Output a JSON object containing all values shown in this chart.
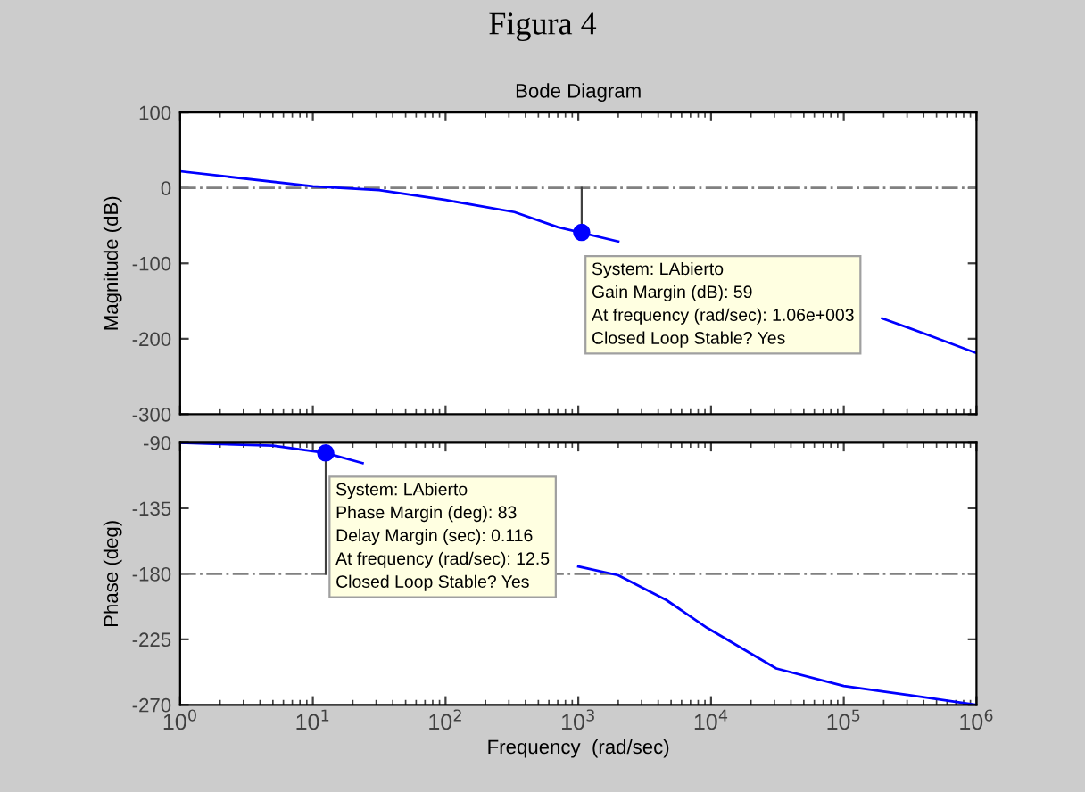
{
  "chart_data": [
    {
      "type": "line",
      "title": "Bode Diagram",
      "ylabel": "Magnitude (dB)",
      "log": "x",
      "xlim": [
        1,
        1000000
      ],
      "xticks": [
        {
          "value": 1,
          "label": null
        },
        {
          "value": 10,
          "label": null
        },
        {
          "value": 100,
          "label": null
        },
        {
          "value": 1000,
          "label": null
        },
        {
          "value": 10000,
          "label": null
        },
        {
          "value": 100000,
          "label": null
        },
        {
          "value": 1000000,
          "label": null
        }
      ],
      "ylim": [
        -300,
        100
      ],
      "yticks": [
        100,
        0,
        -100,
        -200,
        -300
      ],
      "tick_labels": "y",
      "grid": false,
      "legend": false,
      "series": [
        {
          "color": "#0000ff",
          "x": [
            1,
            10,
            31.6,
            100,
            330,
            700,
            2000,
            3000,
            195000,
            417000,
            1000000
          ],
          "values": [
            22,
            2,
            -3,
            -16,
            -32,
            -52,
            -71,
            null,
            -173,
            -194,
            -219
          ]
        }
      ],
      "ref_lines": [
        {
          "axis": "y",
          "value": 0,
          "color": "#808080",
          "line_style": "dashdot"
        }
      ],
      "annotations": [
        "Figura 4",
        {
          "text": "System: LAbierto\nGain Margin (dB): 59\nAt frequency (rad/sec): 1.06e+003\nClosed Loop Stable? Yes",
          "x": 1060,
          "y": -59
        }
      ]
    },
    {
      "type": "line",
      "xlabel": "Frequency  (rad/sec)",
      "ylabel": "Phase (deg)",
      "log": "x",
      "xlim": [
        1,
        1000000
      ],
      "xticks": [
        {
          "value": 1,
          "label": "10$^{0}$"
        },
        {
          "value": 10,
          "label": "10$^{1}$"
        },
        {
          "value": 100,
          "label": "10$^{2}$"
        },
        {
          "value": 1000,
          "label": "10$^{3}$"
        },
        {
          "value": 10000,
          "label": "10$^{4}$"
        },
        {
          "value": 100000,
          "label": "10$^{5}$"
        },
        {
          "value": 1000000,
          "label": "10$^{6}$"
        }
      ],
      "ylim": [
        -270,
        -90
      ],
      "yticks": [
        -90,
        -135,
        -180,
        -225,
        -270
      ],
      "grid": false,
      "legend": false,
      "series": [
        {
          "color": "#0000ff",
          "x": [
            1,
            5,
            12.5,
            23.7,
            100,
            1000,
            2000,
            4600,
            9300,
            31000,
            100000,
            295000,
            1000000
          ],
          "values": [
            -90,
            -92,
            -97,
            -104,
            null,
            -175,
            -181,
            -198,
            -217,
            -245,
            -257,
            -263,
            -270
          ]
        }
      ],
      "ref_lines": [
        {
          "axis": "y",
          "value": -180,
          "color": "#808080",
          "line_style": "dashdot"
        }
      ],
      "annotations": [
        {
          "text": "System: LAbierto\nPhase Margin (deg): 83\nDelay Margin (sec): 0.116\nAt frequency (rad/sec): 12.5\nClosed Loop Stable? Yes",
          "x": 12.5,
          "y": -97
        }
      ]
    }
  ]
}
